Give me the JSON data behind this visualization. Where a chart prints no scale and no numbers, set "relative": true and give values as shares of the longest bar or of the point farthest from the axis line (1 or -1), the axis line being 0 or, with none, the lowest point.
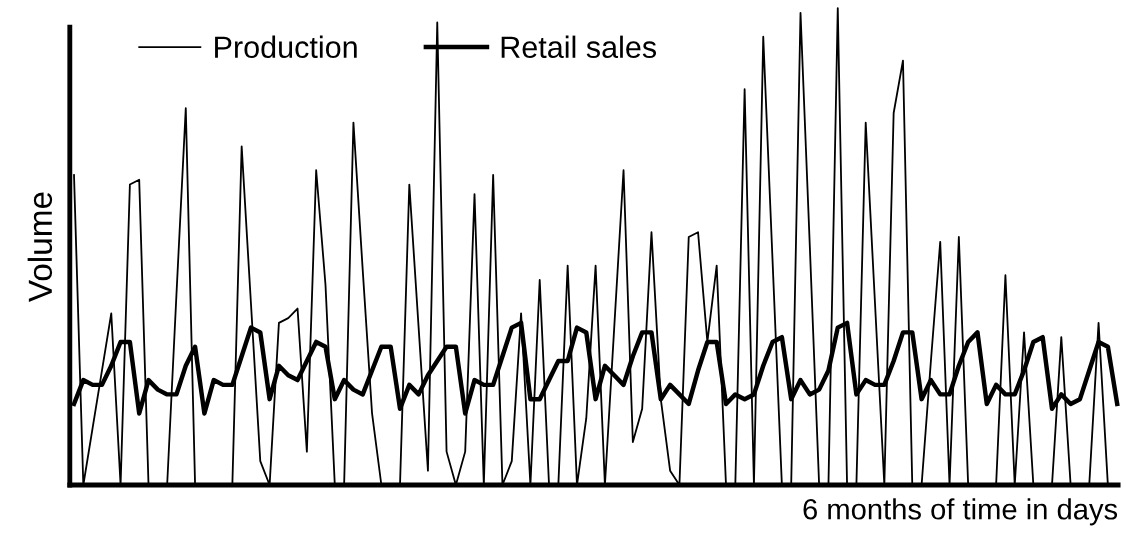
{
  "chart_data": {
    "type": "line",
    "relative": true,
    "xlabel": "6 months of time in days",
    "ylabel": "Volume",
    "legend": "top left",
    "grid": false,
    "marker": "none",
    "line_style": "solid",
    "categories": [
      null,
      null,
      null,
      null,
      null,
      null,
      null,
      null,
      null,
      null,
      null,
      null,
      null,
      null,
      null,
      null,
      null,
      null,
      null,
      null,
      null,
      null,
      null,
      null,
      null,
      null,
      null,
      null,
      null,
      null,
      null,
      null,
      null,
      null,
      null,
      null,
      null,
      null,
      null,
      null,
      null,
      null,
      null,
      null,
      null,
      null,
      null,
      null,
      null,
      null,
      null,
      null,
      null,
      null,
      null,
      null,
      null,
      null,
      null,
      null,
      null,
      null,
      null,
      null,
      null,
      null,
      null,
      null,
      null,
      null,
      null,
      null,
      null,
      null,
      null,
      null,
      null,
      null,
      null,
      null,
      null,
      null,
      null,
      null,
      null,
      null,
      null,
      null,
      null,
      null,
      null,
      null,
      null,
      null,
      null,
      null,
      null,
      null,
      null,
      null,
      null,
      null,
      null,
      null,
      null,
      null,
      null,
      null,
      null,
      null,
      null,
      null,
      null
    ],
    "series": [
      {
        "name": "Production",
        "color": "#000000",
        "values": [
          0.65,
          0,
          0.12,
          0.24,
          0.36,
          0,
          0.63,
          0.64,
          0,
          0,
          0,
          0.4,
          0.79,
          0,
          0,
          0,
          0,
          0,
          0.71,
          0.38,
          0.05,
          0,
          0.34,
          0.35,
          0.37,
          0.07,
          0.66,
          0.42,
          0,
          0,
          0.76,
          0.45,
          0.15,
          0,
          0,
          0,
          0.63,
          0.33,
          0.03,
          0.97,
          0.07,
          0,
          0.07,
          0.61,
          0,
          0.65,
          0,
          0.05,
          0.36,
          0,
          0.43,
          0,
          0,
          0.46,
          0,
          0.14,
          0.46,
          0,
          0.33,
          0.66,
          0.09,
          0.16,
          0.53,
          0.18,
          0.03,
          0,
          0.52,
          0.53,
          0.3,
          0.46,
          0,
          0,
          0.83,
          0,
          0.94,
          0.47,
          0,
          0,
          0.99,
          0.5,
          0,
          0,
          1.0,
          0,
          0,
          0.76,
          0.38,
          0,
          0.78,
          0.89,
          0,
          0,
          0.26,
          0.51,
          0,
          0.52,
          0,
          0,
          0,
          0,
          0.44,
          0,
          0.32,
          0,
          0,
          0,
          0.31,
          0,
          0,
          0,
          0.34,
          0,
          null
        ]
      },
      {
        "name": "Retail sales",
        "color": "#000000",
        "values": [
          0.17,
          0.22,
          0.21,
          0.21,
          0.25,
          0.3,
          0.3,
          0.15,
          0.22,
          0.2,
          0.19,
          0.19,
          0.25,
          0.29,
          0.15,
          0.22,
          0.21,
          0.21,
          0.27,
          0.33,
          0.32,
          0.18,
          0.25,
          0.23,
          0.22,
          0.26,
          0.3,
          0.29,
          0.18,
          0.22,
          0.2,
          0.19,
          0.24,
          0.29,
          0.29,
          0.16,
          0.21,
          0.19,
          0.23,
          0.26,
          0.29,
          0.29,
          0.15,
          0.22,
          0.21,
          0.21,
          0.27,
          0.33,
          0.34,
          0.18,
          0.18,
          0.22,
          0.26,
          0.26,
          0.33,
          0.32,
          0.18,
          0.25,
          0.23,
          0.21,
          0.27,
          0.32,
          0.32,
          0.18,
          0.21,
          0.19,
          0.17,
          0.24,
          0.3,
          0.3,
          0.17,
          0.19,
          0.18,
          0.19,
          0.25,
          0.3,
          0.31,
          0.18,
          0.22,
          0.19,
          0.2,
          0.24,
          0.33,
          0.34,
          0.19,
          0.22,
          0.21,
          0.21,
          0.26,
          0.32,
          0.32,
          0.18,
          0.22,
          0.19,
          0.19,
          0.25,
          0.3,
          0.32,
          0.17,
          0.21,
          0.19,
          0.19,
          0.24,
          0.3,
          0.31,
          0.16,
          0.19,
          0.17,
          0.18,
          0.24,
          0.3,
          0.29,
          0.17
        ]
      }
    ]
  }
}
